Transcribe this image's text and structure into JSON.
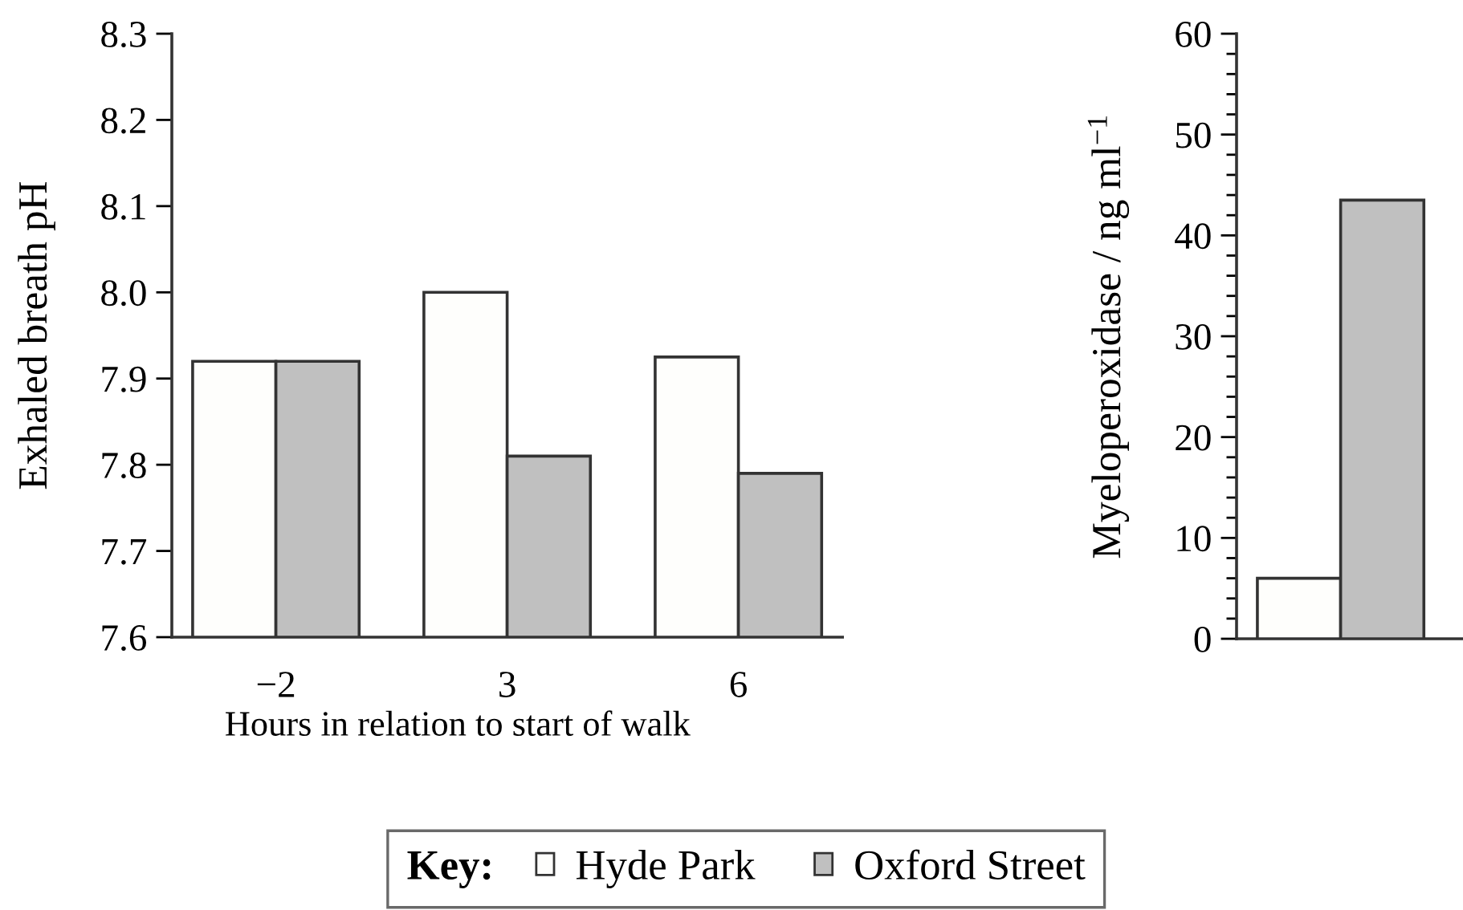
{
  "chart_data": [
    {
      "type": "bar",
      "xlabel": "Hours in relation to start of walk",
      "ylabel": "Exhaled breath pH",
      "categories": [
        "−2",
        "3",
        "6"
      ],
      "series": [
        {
          "name": "Hyde Park",
          "color": "#fefefc",
          "values": [
            7.92,
            8.0,
            7.925
          ]
        },
        {
          "name": "Oxford Street",
          "color": "#c0c0c0",
          "values": [
            7.92,
            7.81,
            7.79
          ]
        }
      ],
      "ylim": [
        7.6,
        8.3
      ],
      "yticks": [
        7.6,
        7.7,
        7.8,
        7.9,
        {
          "value": 8,
          "label": "8.0"
        },
        8.1,
        8.2,
        8.3
      ],
      "legend": "bottom",
      "legend_title": "Key:"
    },
    {
      "type": "bar",
      "ylabel": "Myeloperoxidase / ng ml$^{−1}$",
      "categories": [
        null
      ],
      "series": [
        {
          "color": "#fefefc",
          "values": [
            6
          ]
        },
        {
          "color": "#c0c0c0",
          "values": [
            43.5
          ]
        }
      ],
      "ylim": [
        0,
        60
      ],
      "yticks": [
        0,
        {
          "value": 2,
          "label": null
        },
        {
          "value": 4,
          "label": null
        },
        {
          "value": 6,
          "label": null
        },
        {
          "value": 8,
          "label": null
        },
        10,
        {
          "value": 12,
          "label": null
        },
        {
          "value": 14,
          "label": null
        },
        {
          "value": 16,
          "label": null
        },
        {
          "value": 18,
          "label": null
        },
        20,
        {
          "value": 22,
          "label": null
        },
        {
          "value": 24,
          "label": null
        },
        {
          "value": 26,
          "label": null
        },
        {
          "value": 28,
          "label": null
        },
        30,
        {
          "value": 32,
          "label": null
        },
        {
          "value": 34,
          "label": null
        },
        {
          "value": 36,
          "label": null
        },
        {
          "value": 38,
          "label": null
        },
        40,
        {
          "value": 42,
          "label": null
        },
        {
          "value": 44,
          "label": null
        },
        {
          "value": 46,
          "label": null
        },
        {
          "value": 48,
          "label": null
        },
        50,
        {
          "value": 52,
          "label": null
        },
        {
          "value": 54,
          "label": null
        },
        {
          "value": 56,
          "label": null
        },
        {
          "value": 58,
          "label": null
        },
        60
      ]
    }
  ]
}
